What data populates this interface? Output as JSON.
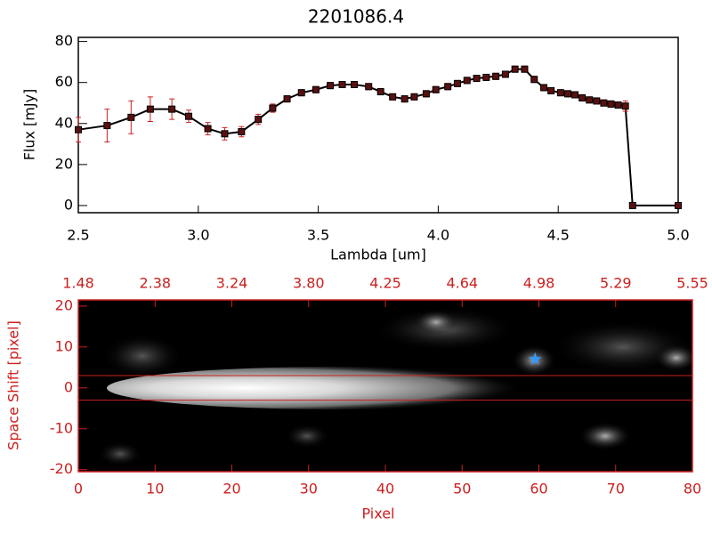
{
  "chart_data": [
    {
      "type": "line",
      "title": "2201086.4",
      "x_label": "Lambda [um]",
      "y_label": "Flux [mJy]",
      "x": [
        2.5,
        2.62,
        2.72,
        2.8,
        2.89,
        2.96,
        3.04,
        3.11,
        3.18,
        3.25,
        3.31,
        3.37,
        3.43,
        3.49,
        3.55,
        3.6,
        3.65,
        3.71,
        3.76,
        3.81,
        3.86,
        3.9,
        3.95,
        3.99,
        4.04,
        4.08,
        4.12,
        4.16,
        4.2,
        4.24,
        4.28,
        4.32,
        4.36,
        4.4,
        4.44,
        4.47,
        4.51,
        4.54,
        4.57,
        4.6,
        4.63,
        4.66,
        4.69,
        4.72,
        4.75,
        4.78,
        4.81,
        5.0
      ],
      "series": [
        {
          "color": "#000000",
          "marker_color": "#5a1010",
          "error_color": "#cc2020",
          "values": [
            37,
            39,
            43,
            47,
            47,
            43.5,
            37.5,
            35,
            36,
            42,
            47.5,
            52,
            55,
            56.5,
            58.5,
            59,
            59,
            58,
            55.5,
            53,
            52,
            53,
            54.5,
            56.5,
            58,
            59.5,
            61,
            62,
            62.5,
            63,
            64,
            66.5,
            66.5,
            61.5,
            57.5,
            56,
            55,
            54.5,
            54,
            52.5,
            51.5,
            51,
            50,
            49.5,
            49,
            48.5,
            0,
            0
          ],
          "errors": [
            6,
            8,
            8,
            6,
            5,
            3,
            3,
            3,
            2.5,
            2.5,
            2,
            1.5,
            1.5,
            1.5,
            1.5,
            1.5,
            1.5,
            1.5,
            1.5,
            1.5,
            1.5,
            1.5,
            1.5,
            1.5,
            1.5,
            1.5,
            1.5,
            1.5,
            1.5,
            1.5,
            1.5,
            1.5,
            1.5,
            1.5,
            1.5,
            1.5,
            1.5,
            1.5,
            1.5,
            1.5,
            1.5,
            1.5,
            1.5,
            1.5,
            1.5,
            2.5,
            0,
            0
          ]
        }
      ],
      "xlim": [
        2.5,
        5.0
      ],
      "xticks": [
        2.5,
        {
          "value": 3,
          "label": "3.0"
        },
        3.5,
        {
          "value": 4,
          "label": "4.0"
        },
        4.5,
        {
          "value": 5,
          "label": "5.0"
        }
      ],
      "ylim": [
        -3.5,
        82
      ],
      "yticks": [
        0,
        20,
        40,
        60,
        80
      ]
    },
    {
      "type": "image",
      "x_label": "Pixel",
      "y_label": "Space Shift [pixel]",
      "color": "#cc2020",
      "xlim": [
        0,
        80
      ],
      "xticks": [
        0,
        10,
        20,
        30,
        40,
        50,
        60,
        70,
        80
      ],
      "top_xticks": [
        {
          "value": 0,
          "label": "1.48"
        },
        {
          "value": 10,
          "label": "2.38"
        },
        {
          "value": 20,
          "label": "3.24"
        },
        {
          "value": 30,
          "label": "3.80"
        },
        {
          "value": 40,
          "label": "4.25"
        },
        {
          "value": 50,
          "label": "4.64"
        },
        {
          "value": 60,
          "label": "4.98"
        },
        {
          "value": 70,
          "label": "5.29"
        },
        {
          "value": 80,
          "label": "5.55"
        }
      ],
      "ylim": [
        -20.5,
        21.5
      ],
      "yticks": [
        -20,
        -10,
        0,
        10,
        20
      ],
      "aperture": [
        -3,
        3
      ],
      "marker": {
        "x": 59.5,
        "y": 7,
        "color": "#3399ff"
      }
    }
  ]
}
